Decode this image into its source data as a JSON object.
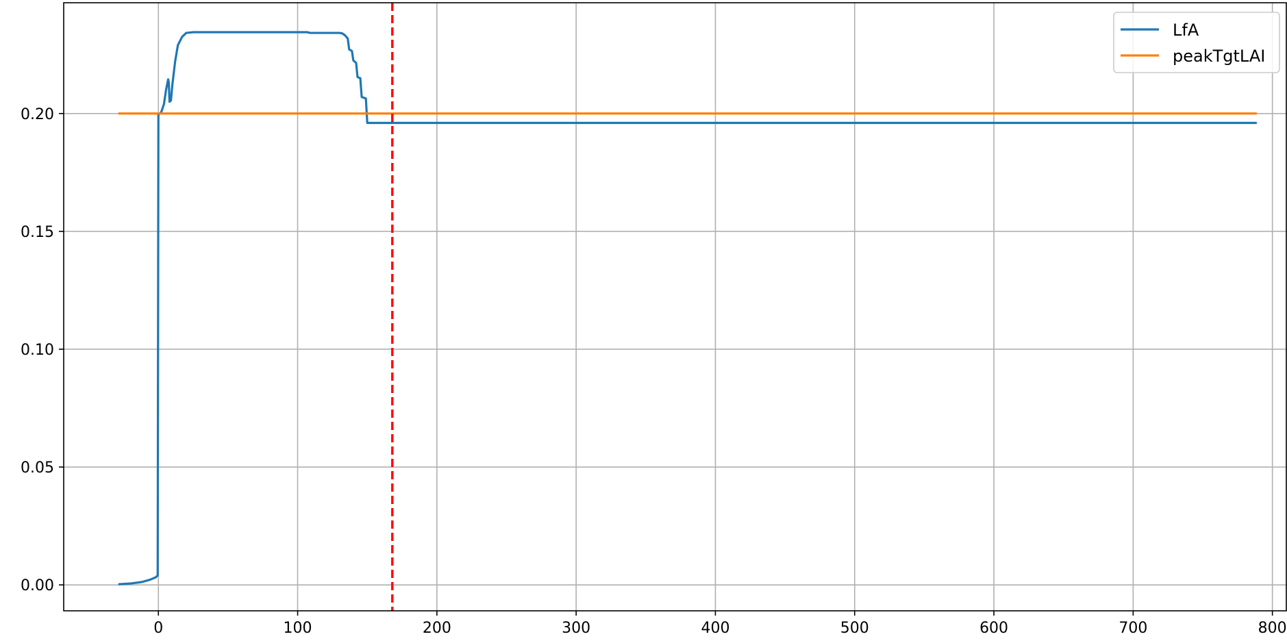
{
  "chart_data": {
    "type": "line",
    "title": "",
    "xlabel": "",
    "ylabel": "",
    "xlim": [
      -68,
      810
    ],
    "ylim": [
      -0.011,
      0.247
    ],
    "x_ticks": [
      0,
      100,
      200,
      300,
      400,
      500,
      600,
      700,
      800
    ],
    "y_ticks": [
      0.0,
      0.05,
      0.1,
      0.15,
      0.2
    ],
    "x_tick_labels": [
      "0",
      "100",
      "200",
      "300",
      "400",
      "500",
      "600",
      "700",
      "800"
    ],
    "y_tick_labels": [
      "0.00",
      "0.05",
      "0.10",
      "0.15",
      "0.20"
    ],
    "grid": true,
    "legend_position": "top-right",
    "series": [
      {
        "name": "LfA",
        "color": "#1f77b4",
        "x": [
          -28,
          -20,
          -12,
          -6,
          -2,
          -0.5,
          0,
          2,
          4,
          5.5,
          7,
          7.5,
          8,
          9,
          10,
          12,
          14,
          17,
          20,
          25,
          40,
          60,
          80,
          100,
          107,
          109,
          120,
          130,
          132,
          134,
          136,
          137,
          139,
          140,
          141,
          142,
          143,
          144,
          145,
          146,
          147,
          148,
          149,
          150,
          160,
          200,
          300,
          400,
          500,
          600,
          700,
          788
        ],
        "values": [
          0.0003,
          0.0006,
          0.0012,
          0.0022,
          0.0032,
          0.004,
          0.1995,
          0.2005,
          0.204,
          0.21,
          0.2145,
          0.213,
          0.205,
          0.2055,
          0.212,
          0.222,
          0.229,
          0.2325,
          0.2342,
          0.2345,
          0.2345,
          0.2345,
          0.2345,
          0.2345,
          0.2345,
          0.2342,
          0.2342,
          0.2342,
          0.234,
          0.2332,
          0.2318,
          0.2272,
          0.2265,
          0.2225,
          0.222,
          0.2215,
          0.2155,
          0.2152,
          0.215,
          0.207,
          0.2068,
          0.2066,
          0.2064,
          0.196,
          0.196,
          0.196,
          0.196,
          0.196,
          0.196,
          0.196,
          0.196,
          0.196
        ]
      },
      {
        "name": "peakTgtLAI",
        "color": "#ff7f0e",
        "x": [
          -28,
          788
        ],
        "values": [
          0.2,
          0.2
        ]
      }
    ],
    "annotations": [
      {
        "type": "vline",
        "x": 168,
        "color": "#ff0000",
        "style": "dashed"
      }
    ]
  }
}
